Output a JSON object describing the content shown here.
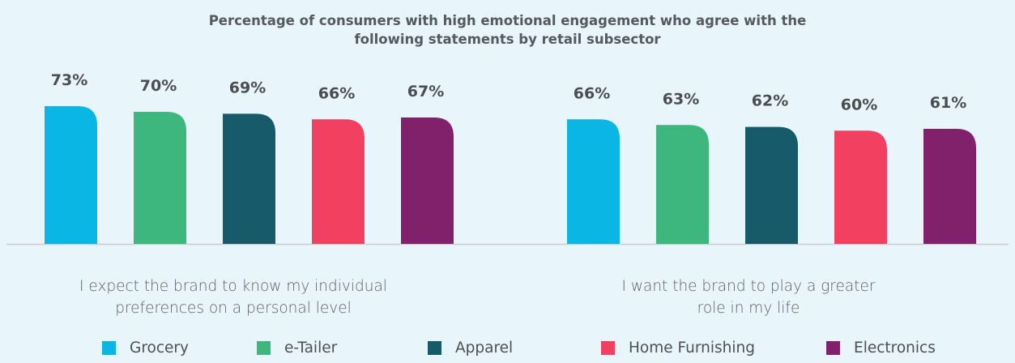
{
  "title": {
    "line1": "Percentage of consumers with high emotional engagement who agree with the",
    "line2": "following statements by retail subsector"
  },
  "colors": {
    "background": "#e8f5fb",
    "axis": "#c9cdd1",
    "value_label": "#4a4e53"
  },
  "chart_data": {
    "type": "bar",
    "title": "Percentage of consumers with high emotional engagement who agree with the following statements by retail subsector",
    "categories": [
      "I expect the brand to know my individual preferences on a personal level",
      "I want the brand to play a greater role in my life"
    ],
    "category_lines": [
      [
        "I expect the brand to know my individual",
        "preferences on a personal level"
      ],
      [
        "I want the brand to play a greater",
        "role in my life"
      ]
    ],
    "series": [
      {
        "name": "Grocery",
        "color": "#0ab6e3",
        "values": [
          73,
          66
        ]
      },
      {
        "name": "e-Tailer",
        "color": "#3db77e",
        "values": [
          70,
          63
        ]
      },
      {
        "name": "Apparel",
        "color": "#175a6a",
        "values": [
          69,
          62
        ]
      },
      {
        "name": "Home Furnishing",
        "color": "#f14060",
        "values": [
          66,
          60
        ]
      },
      {
        "name": "Electronics",
        "color": "#81206b",
        "values": [
          67,
          61
        ]
      }
    ],
    "value_suffix": "%",
    "xlabel": "",
    "ylabel": "",
    "ylim": [
      0,
      100
    ],
    "grid": false,
    "legend_position": "bottom"
  }
}
